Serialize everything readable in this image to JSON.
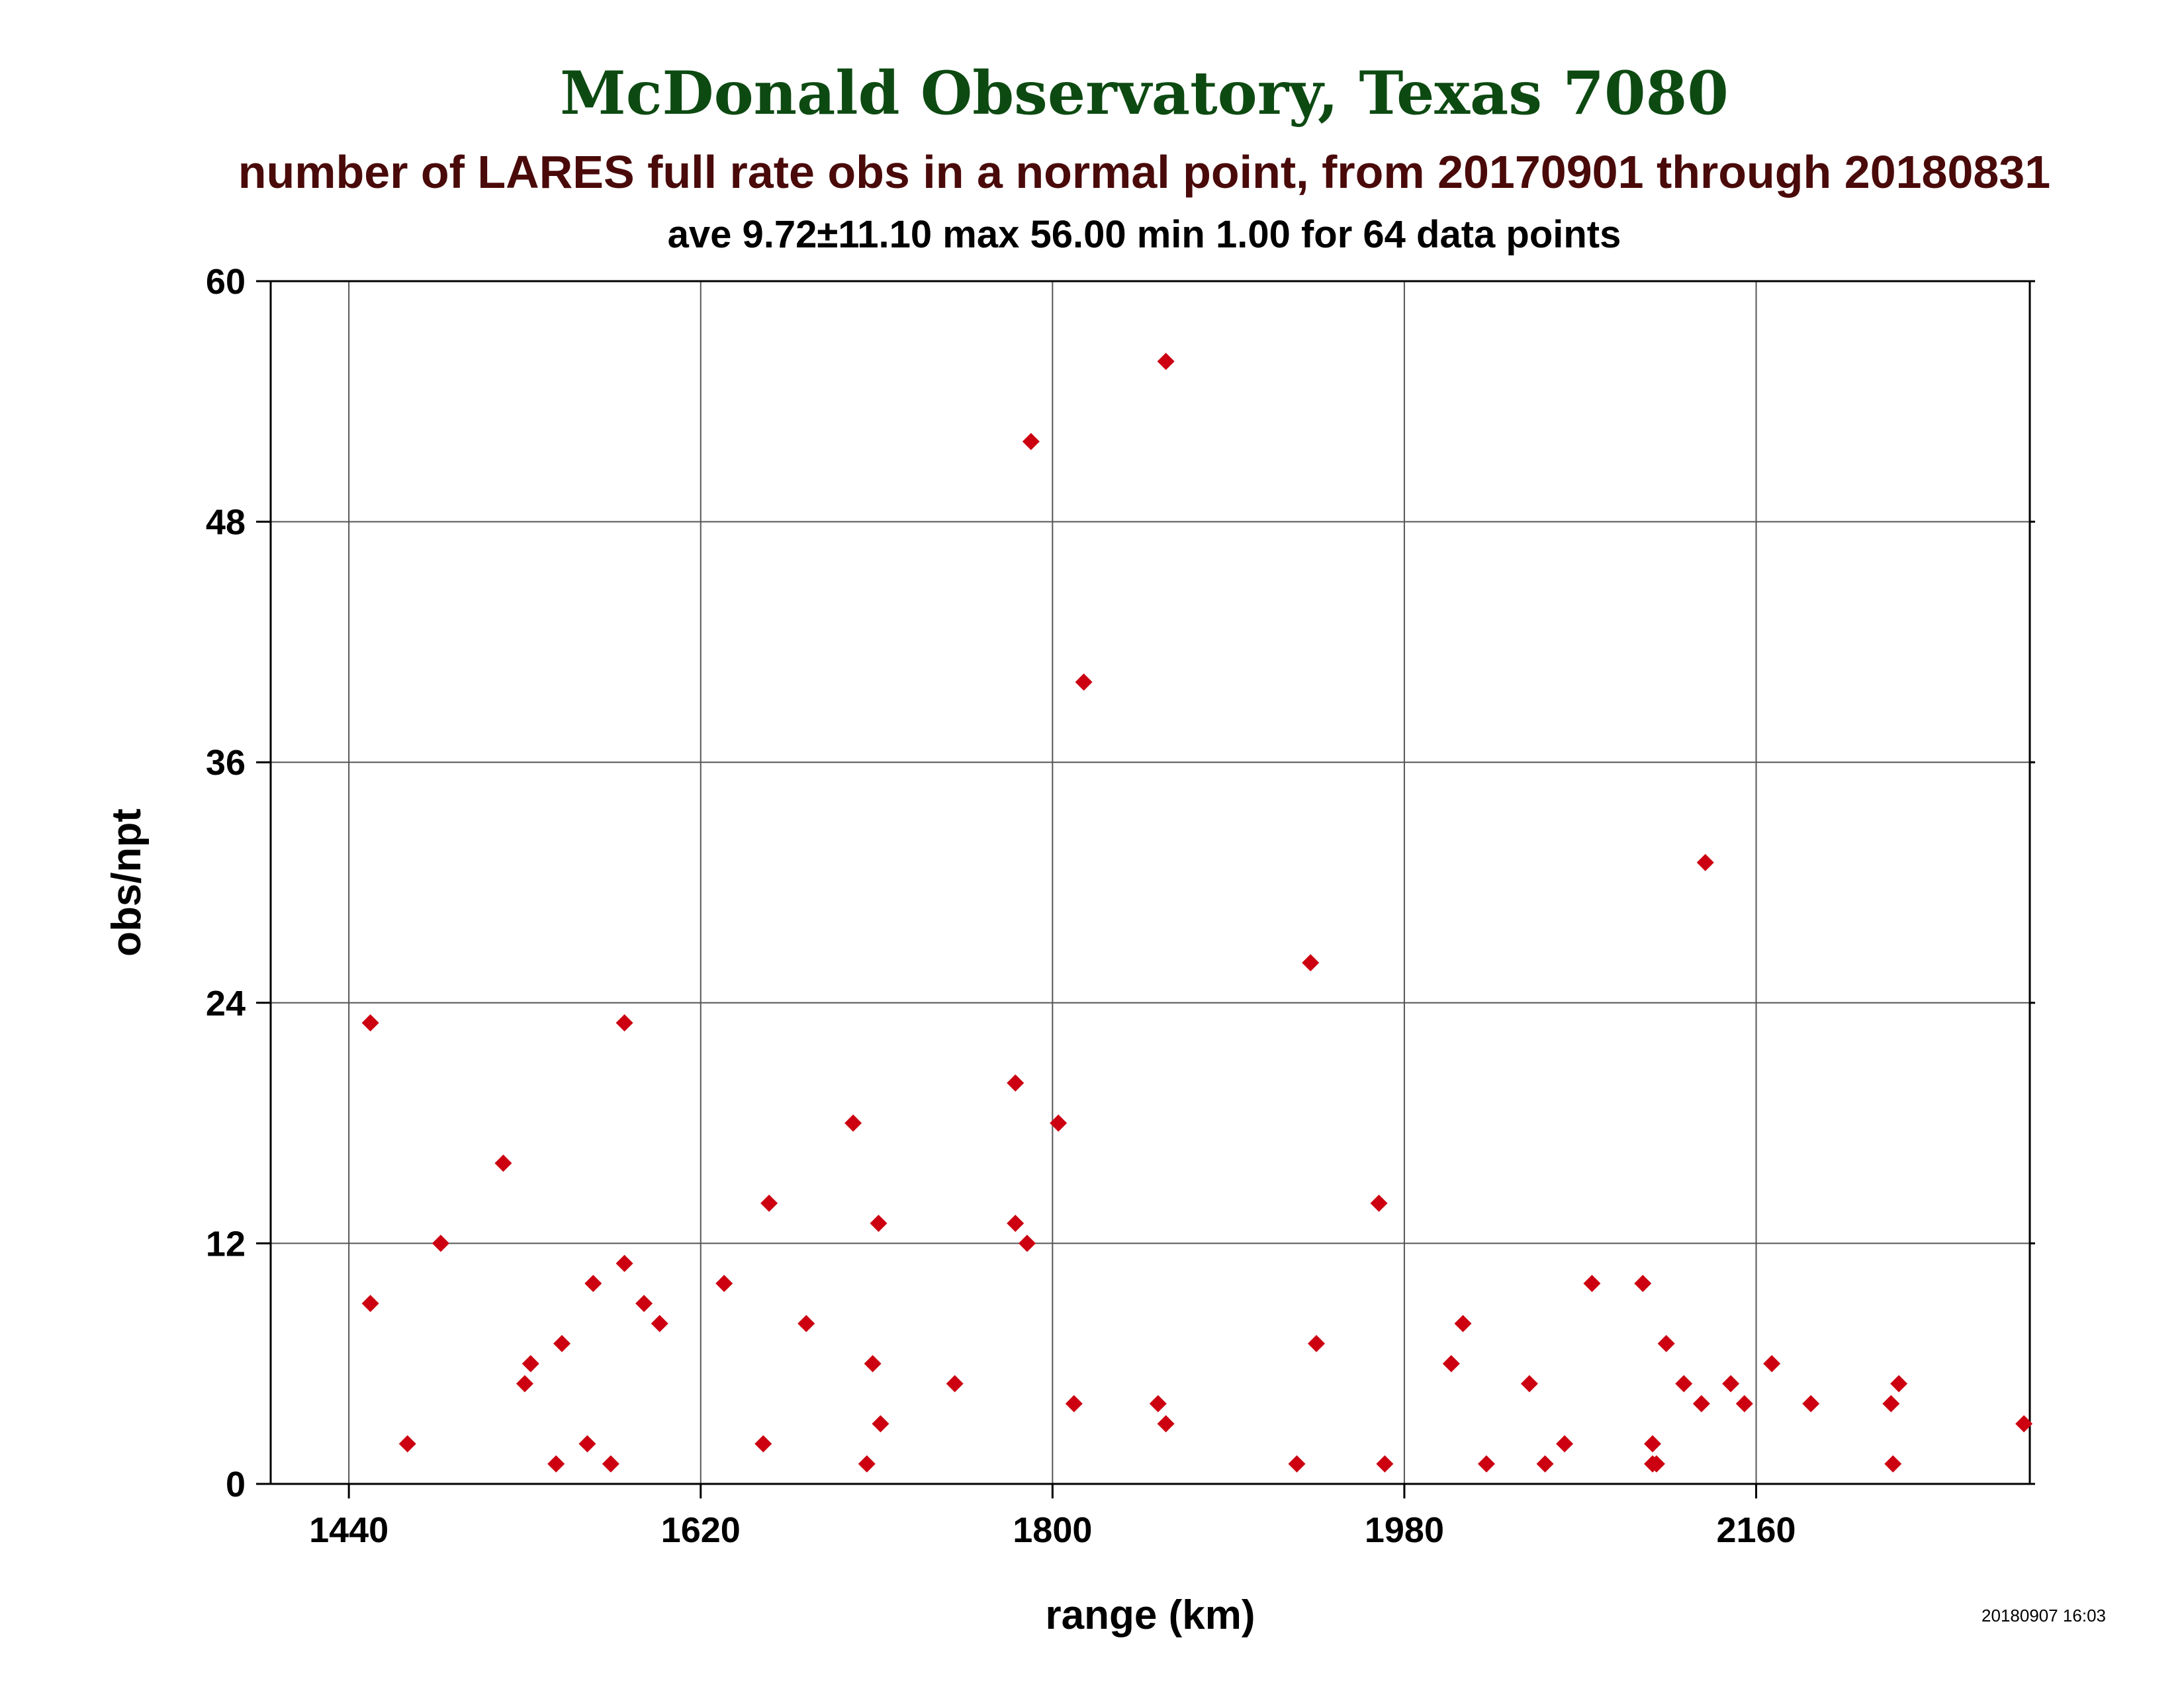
{
  "chart_data": {
    "type": "scatter",
    "title": "McDonald Observatory, Texas 7080",
    "subtitle": "number of LARES full rate obs in a normal point, from 20170901 through 20180831",
    "stats_line": "ave 9.72±11.10 max 56.00 min 1.00 for 64 data points",
    "xlabel": "range (km)",
    "ylabel": "obs/npt",
    "timestamp": "20180907 16:03",
    "xlim": [
      1400,
      2300
    ],
    "ylim": [
      0,
      60
    ],
    "x_ticks": [
      1440,
      1620,
      1800,
      1980,
      2160
    ],
    "y_ticks": [
      0,
      12,
      24,
      36,
      48,
      60
    ],
    "grid": true,
    "colors": {
      "title": "#0d4a12",
      "subtitle": "#4a0a0a",
      "marker": "#cc0010",
      "axis": "#000000",
      "grid": "#555555"
    },
    "points": [
      {
        "x": 1451,
        "y": 23
      },
      {
        "x": 1451,
        "y": 9
      },
      {
        "x": 1470,
        "y": 2
      },
      {
        "x": 1487,
        "y": 12
      },
      {
        "x": 1519,
        "y": 16
      },
      {
        "x": 1530,
        "y": 5
      },
      {
        "x": 1533,
        "y": 6
      },
      {
        "x": 1546,
        "y": 1
      },
      {
        "x": 1549,
        "y": 7
      },
      {
        "x": 1562,
        "y": 2
      },
      {
        "x": 1565,
        "y": 10
      },
      {
        "x": 1574,
        "y": 1
      },
      {
        "x": 1581,
        "y": 23
      },
      {
        "x": 1581,
        "y": 11
      },
      {
        "x": 1591,
        "y": 9
      },
      {
        "x": 1599,
        "y": 8
      },
      {
        "x": 1632,
        "y": 10
      },
      {
        "x": 1652,
        "y": 2
      },
      {
        "x": 1655,
        "y": 14
      },
      {
        "x": 1674,
        "y": 8
      },
      {
        "x": 1698,
        "y": 18
      },
      {
        "x": 1705,
        "y": 1
      },
      {
        "x": 1708,
        "y": 6
      },
      {
        "x": 1711,
        "y": 13
      },
      {
        "x": 1712,
        "y": 3
      },
      {
        "x": 1750,
        "y": 5
      },
      {
        "x": 1781,
        "y": 20
      },
      {
        "x": 1781,
        "y": 13
      },
      {
        "x": 1787,
        "y": 12
      },
      {
        "x": 1789,
        "y": 52
      },
      {
        "x": 1803,
        "y": 18
      },
      {
        "x": 1811,
        "y": 4
      },
      {
        "x": 1816,
        "y": 40
      },
      {
        "x": 1854,
        "y": 4
      },
      {
        "x": 1858,
        "y": 56
      },
      {
        "x": 1858,
        "y": 3
      },
      {
        "x": 1925,
        "y": 1
      },
      {
        "x": 1932,
        "y": 26
      },
      {
        "x": 1935,
        "y": 7
      },
      {
        "x": 1967,
        "y": 14
      },
      {
        "x": 1970,
        "y": 1
      },
      {
        "x": 2004,
        "y": 6
      },
      {
        "x": 2010,
        "y": 8
      },
      {
        "x": 2022,
        "y": 1
      },
      {
        "x": 2044,
        "y": 5
      },
      {
        "x": 2052,
        "y": 1
      },
      {
        "x": 2062,
        "y": 2
      },
      {
        "x": 2076,
        "y": 10
      },
      {
        "x": 2102,
        "y": 10
      },
      {
        "x": 2107,
        "y": 2
      },
      {
        "x": 2107,
        "y": 1
      },
      {
        "x": 2109,
        "y": 1
      },
      {
        "x": 2114,
        "y": 7
      },
      {
        "x": 2123,
        "y": 5
      },
      {
        "x": 2132,
        "y": 4
      },
      {
        "x": 2134,
        "y": 31
      },
      {
        "x": 2147,
        "y": 5
      },
      {
        "x": 2154,
        "y": 4
      },
      {
        "x": 2168,
        "y": 6
      },
      {
        "x": 2188,
        "y": 4
      },
      {
        "x": 2229,
        "y": 4
      },
      {
        "x": 2230,
        "y": 1
      },
      {
        "x": 2233,
        "y": 5
      },
      {
        "x": 2297,
        "y": 3
      }
    ]
  }
}
